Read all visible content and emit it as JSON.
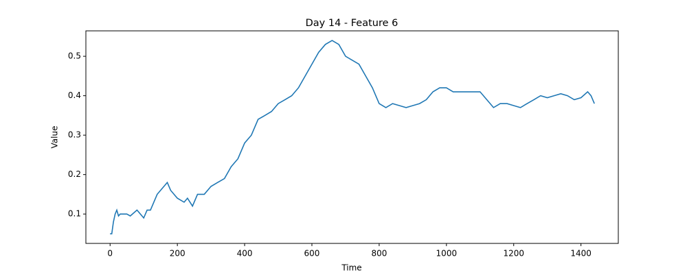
{
  "chart_data": {
    "type": "line",
    "title": "Day 14 - Feature 6",
    "x_label": "Time",
    "y_label": "Value",
    "x": [
      0,
      5,
      10,
      15,
      20,
      25,
      30,
      50,
      60,
      80,
      100,
      110,
      120,
      130,
      140,
      150,
      160,
      170,
      180,
      190,
      200,
      220,
      230,
      245,
      260,
      280,
      300,
      320,
      340,
      360,
      380,
      400,
      420,
      440,
      460,
      480,
      500,
      520,
      540,
      560,
      580,
      600,
      620,
      640,
      660,
      680,
      700,
      720,
      740,
      760,
      780,
      800,
      820,
      840,
      860,
      880,
      900,
      920,
      940,
      960,
      980,
      1000,
      1020,
      1060,
      1100,
      1120,
      1140,
      1160,
      1180,
      1200,
      1220,
      1240,
      1260,
      1280,
      1300,
      1320,
      1340,
      1360,
      1380,
      1400,
      1420,
      1430,
      1440
    ],
    "series": [
      {
        "name": "Feature 6",
        "color": "#1f77b4",
        "values": [
          0.05,
          0.05,
          0.08,
          0.1,
          0.11,
          0.095,
          0.1,
          0.1,
          0.095,
          0.11,
          0.09,
          0.11,
          0.11,
          0.13,
          0.15,
          0.16,
          0.17,
          0.18,
          0.16,
          0.15,
          0.14,
          0.13,
          0.14,
          0.12,
          0.15,
          0.15,
          0.17,
          0.18,
          0.19,
          0.22,
          0.24,
          0.28,
          0.3,
          0.34,
          0.35,
          0.36,
          0.38,
          0.39,
          0.4,
          0.42,
          0.45,
          0.48,
          0.51,
          0.53,
          0.54,
          0.53,
          0.5,
          0.49,
          0.48,
          0.45,
          0.42,
          0.38,
          0.37,
          0.38,
          0.375,
          0.37,
          0.375,
          0.38,
          0.39,
          0.41,
          0.42,
          0.42,
          0.41,
          0.41,
          0.41,
          0.39,
          0.37,
          0.38,
          0.38,
          0.375,
          0.37,
          0.38,
          0.39,
          0.4,
          0.395,
          0.4,
          0.405,
          0.4,
          0.39,
          0.395,
          0.41,
          0.4,
          0.38
        ]
      }
    ],
    "xlim": [
      -72,
      1511
    ],
    "ylim": [
      0.0255,
      0.5645
    ],
    "xticks": [
      0,
      200,
      400,
      600,
      800,
      1000,
      1200,
      1400
    ],
    "yticks": [
      0.1,
      0.2,
      0.3,
      0.4,
      0.5
    ]
  }
}
